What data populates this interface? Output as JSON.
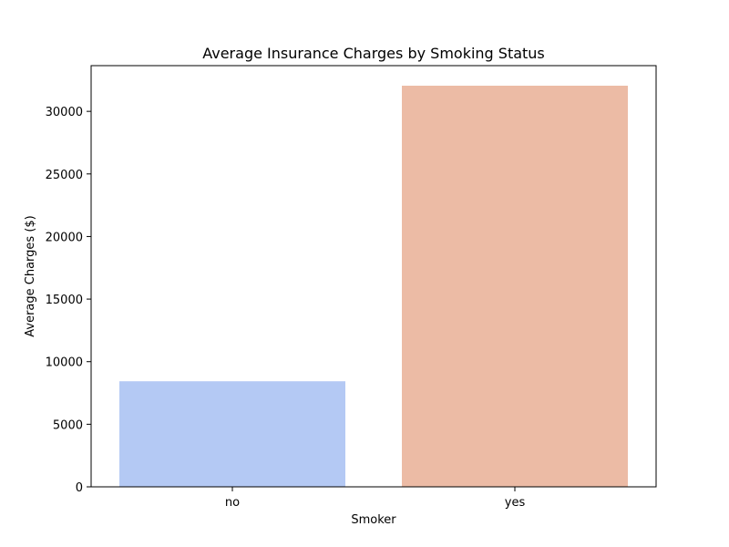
{
  "chart_data": {
    "type": "bar",
    "title": "Average Insurance Charges by Smoking Status",
    "xlabel": "Smoker",
    "ylabel": "Average Charges ($)",
    "categories": [
      "no",
      "yes"
    ],
    "values": [
      8434,
      32050
    ],
    "ylim": [
      0,
      33653
    ],
    "yticks": [
      0,
      5000,
      10000,
      15000,
      20000,
      25000,
      30000
    ],
    "colors": [
      "#b4c9f4",
      "#ecbba5"
    ],
    "grid": false,
    "legend": "none"
  }
}
